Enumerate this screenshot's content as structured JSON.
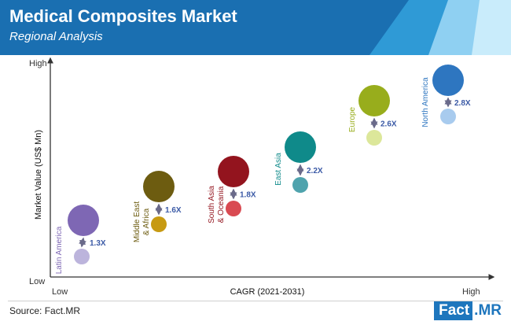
{
  "header": {
    "title": "Medical Composites Market",
    "subtitle": "Regional Analysis"
  },
  "colors": {
    "header_bg": "#1a6fb1",
    "header_stripe_1": "#2f9ad6",
    "header_stripe_2": "#8fd0f2",
    "header_stripe_3": "#c9ecfb",
    "ratio_label": "#3b5aa6",
    "arrow": "#6a6a8a"
  },
  "chart_data": {
    "type": "scatter",
    "xlabel": "CAGR (2021-2031)",
    "ylabel": "Market Value (US$ Mn)",
    "x_low_label": "Low",
    "x_high_label": "High",
    "y_low_label": "Low",
    "y_high_label": "High",
    "regions": [
      {
        "name": "Latin America",
        "ratio": "1.3X",
        "color_big": "#7e67b4",
        "color_small": "#bcb4dc",
        "text_color": "#7e67b4"
      },
      {
        "name": "Middle East & Africa",
        "name_lines": [
          "Middle East",
          "& Africa"
        ],
        "ratio": "1.6X",
        "color_big": "#6d5c10",
        "color_small": "#c79a12",
        "text_color": "#6d5c10"
      },
      {
        "name": "South Asia & Oceania",
        "name_lines": [
          "South Asia",
          "& Oceania"
        ],
        "ratio": "1.8X",
        "color_big": "#93141e",
        "color_small": "#d94a52",
        "text_color": "#93141e"
      },
      {
        "name": "East Asia",
        "ratio": "2.2X",
        "color_big": "#0f8a8a",
        "color_small": "#4fa3ad",
        "text_color": "#0f8a8a"
      },
      {
        "name": "Europe",
        "ratio": "2.6X",
        "color_big": "#98ad1c",
        "color_small": "#dce79a",
        "text_color": "#98ad1c"
      },
      {
        "name": "North America",
        "ratio": "2.8X",
        "color_big": "#2e76c0",
        "color_small": "#a8cbee",
        "text_color": "#2e76c0"
      }
    ]
  },
  "footer": {
    "source": "Source: Fact.MR",
    "logo_left": "Fact",
    "logo_right": ".MR"
  }
}
